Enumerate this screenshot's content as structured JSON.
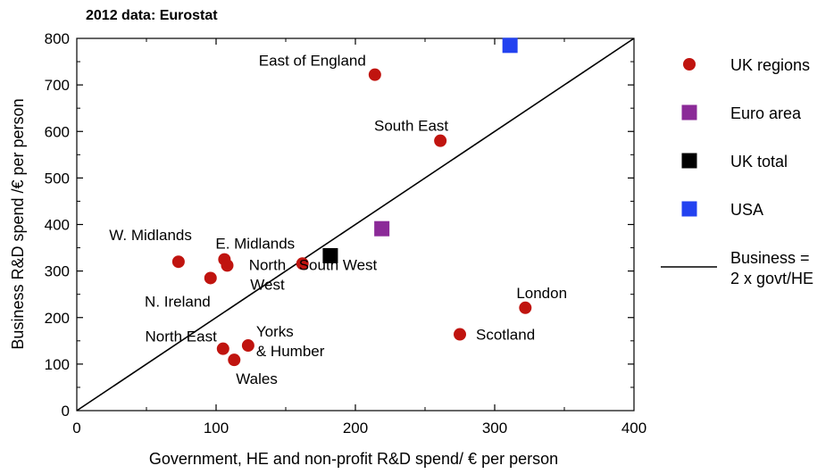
{
  "chart_data": {
    "type": "scatter",
    "title": "2012 data: Eurostat",
    "xlabel": "Government, HE and non-profit R&D spend/ € per person",
    "ylabel": "Business R&D spend /€ per person",
    "xlim": [
      0,
      400
    ],
    "ylim": [
      0,
      800
    ],
    "xticks": [
      0,
      100,
      200,
      300,
      400
    ],
    "yticks": [
      0,
      100,
      200,
      300,
      400,
      500,
      600,
      700,
      800
    ],
    "grid": false,
    "legend_position": "right",
    "colors": {
      "uk_regions": "#c0140f",
      "euro_area": "#8b2a98",
      "uk_total": "#000000",
      "usa": "#2342f0",
      "line": "#000000"
    },
    "series": [
      {
        "name": "UK regions",
        "marker": "circle",
        "points": [
          {
            "label": "East of England",
            "x": 214,
            "y": 722
          },
          {
            "label": "South East",
            "x": 261,
            "y": 580
          },
          {
            "label": "W. Midlands",
            "x": 73,
            "y": 320
          },
          {
            "label": "E. Midlands",
            "x": 106,
            "y": 325
          },
          {
            "label": "North West",
            "x": 108,
            "y": 312
          },
          {
            "label": "N. Ireland",
            "x": 96,
            "y": 285
          },
          {
            "label": "South West",
            "x": 162,
            "y": 316
          },
          {
            "label": "London",
            "x": 322,
            "y": 221
          },
          {
            "label": "Scotland",
            "x": 275,
            "y": 164
          },
          {
            "label": "North East",
            "x": 105,
            "y": 133
          },
          {
            "label": "Yorks & Humber",
            "x": 123,
            "y": 140
          },
          {
            "label": "Wales",
            "x": 113,
            "y": 109
          }
        ]
      },
      {
        "name": "Euro area",
        "marker": "square",
        "points": [
          {
            "x": 219,
            "y": 391
          }
        ]
      },
      {
        "name": "UK total",
        "marker": "square",
        "points": [
          {
            "x": 182,
            "y": 333
          }
        ]
      },
      {
        "name": "USA",
        "marker": "square",
        "points": [
          {
            "x": 311,
            "y": 785
          }
        ]
      },
      {
        "name": "Business = 2 x govt/HE",
        "marker": "line",
        "points": [
          {
            "x": 0,
            "y": 0
          },
          {
            "x": 400,
            "y": 800
          }
        ]
      }
    ],
    "point_label_lines": {
      "East of England": [
        "East of England"
      ],
      "South East": [
        "South East"
      ],
      "W. Midlands": [
        "W. Midlands"
      ],
      "E. Midlands": [
        "E. Midlands"
      ],
      "North West": [
        "North",
        "West"
      ],
      "N. Ireland": [
        "N. Ireland"
      ],
      "South West": [
        "South West"
      ],
      "London": [
        "London"
      ],
      "Scotland": [
        "Scotland"
      ],
      "North East": [
        "North East"
      ],
      "Yorks & Humber": [
        "Yorks",
        "& Humber"
      ],
      "Wales": [
        "Wales"
      ]
    },
    "legend": [
      {
        "label_lines": [
          "UK regions"
        ],
        "marker": "circle",
        "color_key": "uk_regions"
      },
      {
        "label_lines": [
          "Euro area"
        ],
        "marker": "square",
        "color_key": "euro_area"
      },
      {
        "label_lines": [
          "UK total"
        ],
        "marker": "square",
        "color_key": "uk_total"
      },
      {
        "label_lines": [
          "USA"
        ],
        "marker": "square",
        "color_key": "usa"
      },
      {
        "label_lines": [
          "Business =",
          "2 x govt/HE"
        ],
        "marker": "line",
        "color_key": "line"
      }
    ]
  }
}
